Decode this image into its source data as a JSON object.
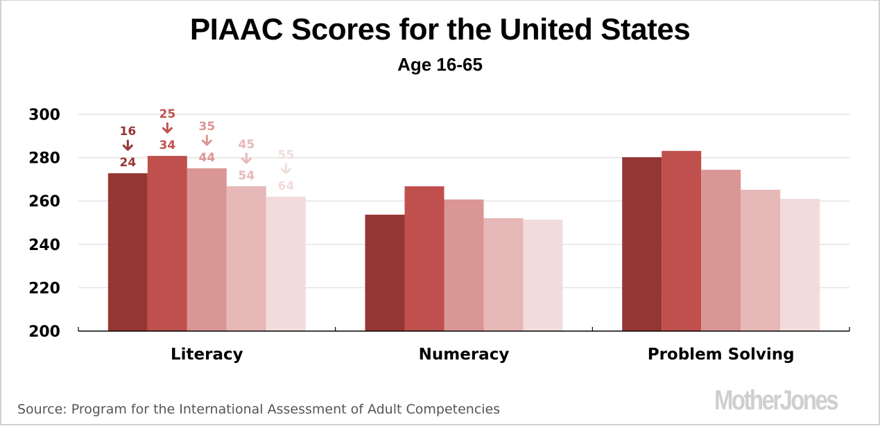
{
  "chart_data": {
    "type": "bar",
    "title": "PIAAC Scores for the United States",
    "subtitle": "Age 16-65",
    "xlabel": "",
    "ylabel": "",
    "ylim": [
      200,
      300
    ],
    "yticks": [
      200,
      220,
      240,
      260,
      280,
      300
    ],
    "grid": true,
    "categories": [
      "Literacy",
      "Numeracy",
      "Problem Solving"
    ],
    "series": [
      {
        "name": "16-24",
        "from": "16",
        "to": "24",
        "color": "#963634",
        "values": [
          272.8,
          253.7,
          280.2
        ]
      },
      {
        "name": "25-34",
        "from": "25",
        "to": "34",
        "color": "#C0504D",
        "values": [
          280.8,
          266.8,
          283.1
        ]
      },
      {
        "name": "35-44",
        "from": "35",
        "to": "44",
        "color": "#DA9694",
        "values": [
          275.1,
          260.7,
          274.4
        ]
      },
      {
        "name": "45-54",
        "from": "45",
        "to": "54",
        "color": "#E6B8B7",
        "values": [
          266.8,
          252.1,
          265.2
        ]
      },
      {
        "name": "55-64",
        "from": "55",
        "to": "64",
        "color": "#F2DCDB",
        "values": [
          262.0,
          251.4,
          261.0
        ]
      }
    ],
    "legend": "inline-labels-above-first-category"
  },
  "source": "Source: Program for the International Assessment of Adult Competencies",
  "logo": "MotherJones"
}
